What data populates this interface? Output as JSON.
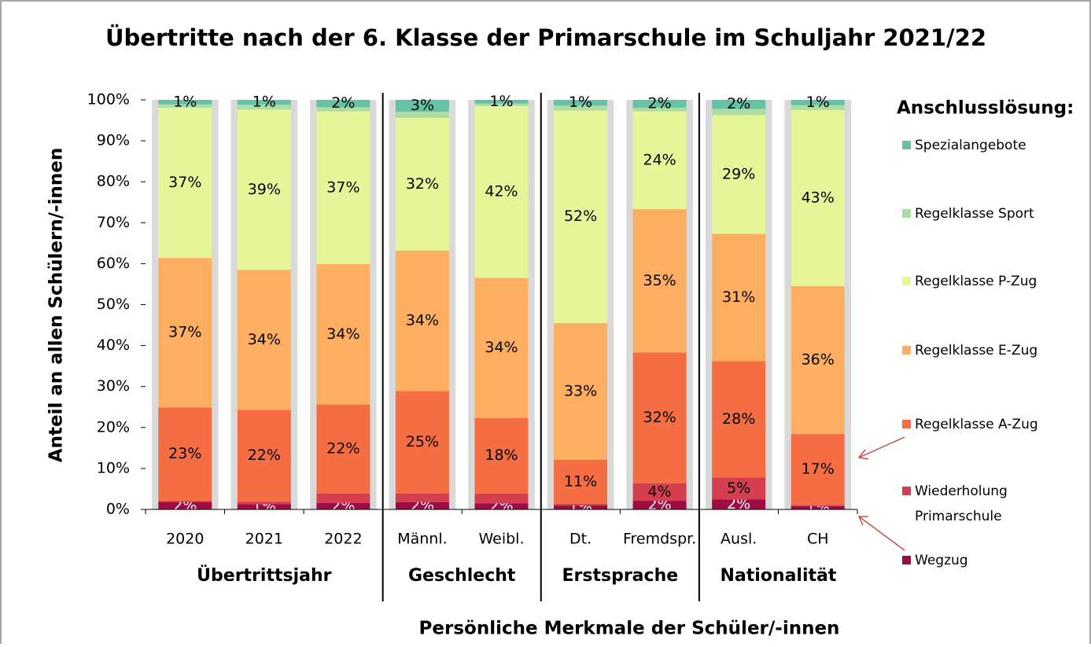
{
  "chart_data": {
    "type": "bar",
    "stacked": true,
    "title": "Übertritte nach der 6. Klasse der Primarschule im Schuljahr 2021/22",
    "ylabel": "Anteil an allen Schülern/-innen",
    "xlabel": "Persönliche Merkmale der Schüler/-innen",
    "categories": [
      "2020",
      "2021",
      "2022",
      "Männl.",
      "Weibl.",
      "Dt.",
      "Fremdspr.",
      "Ausl.",
      "CH"
    ],
    "groups": [
      {
        "name": "Übertrittsjahr",
        "size": 3
      },
      {
        "name": "Geschlecht",
        "size": 2
      },
      {
        "name": "Erstsprache",
        "size": 2
      },
      {
        "name": "Nationalität",
        "size": 2
      }
    ],
    "legend_title": "Anschlusslösung:",
    "legend": "right",
    "ylim": [
      0,
      100
    ],
    "yticks": [
      {
        "value": 0,
        "label": "0%"
      },
      {
        "value": 10,
        "label": "10%"
      },
      {
        "value": 20,
        "label": "20%"
      },
      {
        "value": 30,
        "label": "30%"
      },
      {
        "value": 40,
        "label": "40%"
      },
      {
        "value": 50,
        "label": "50%"
      },
      {
        "value": 60,
        "label": "60%"
      },
      {
        "value": 70,
        "label": "70%"
      },
      {
        "value": 80,
        "label": "80%"
      },
      {
        "value": 90,
        "label": "90%"
      },
      {
        "value": 100,
        "label": "100%"
      }
    ],
    "series": [
      {
        "name": "Wegzug",
        "color": "#9e0b45",
        "values": [
          1.8,
          1.3,
          1.6,
          1.8,
          1.5,
          1.0,
          2.1,
          2.4,
          0.8
        ],
        "value_labels": [
          "2%",
          "1%",
          "2%",
          "2%",
          "2%",
          "1%",
          "2%",
          "2%",
          "1%"
        ]
      },
      {
        "name": "Wiederholung Primarschule",
        "color": "#d53e4f",
        "values": [
          0.3,
          0.6,
          2.3,
          2.1,
          2.4,
          0.4,
          4.3,
          5.4,
          0.3
        ],
        "value_labels": [
          null,
          null,
          null,
          null,
          null,
          null,
          "4%",
          "5%",
          null
        ]
      },
      {
        "name": "Regelklasse A-Zug",
        "color": "#f46d43",
        "values": [
          22.8,
          22.4,
          21.7,
          25.0,
          18.4,
          10.7,
          31.9,
          28.4,
          17.3
        ],
        "value_labels": [
          "23%",
          "22%",
          "22%",
          "25%",
          "18%",
          "11%",
          "32%",
          "28%",
          "17%"
        ]
      },
      {
        "name": "Regelklasse E-Zug",
        "color": "#fdae61",
        "values": [
          36.5,
          34.2,
          34.3,
          34.3,
          34.2,
          33.4,
          35.0,
          31.1,
          36.1
        ],
        "value_labels": [
          "37%",
          "34%",
          "34%",
          "34%",
          "34%",
          "33%",
          "35%",
          "31%",
          "36%"
        ]
      },
      {
        "name": "Regelklasse P-Zug",
        "color": "#e6f598",
        "values": [
          36.7,
          39.1,
          37.3,
          32.4,
          42.0,
          51.9,
          23.9,
          29.0,
          43.0
        ],
        "value_labels": [
          "37%",
          "39%",
          "37%",
          "32%",
          "42%",
          "52%",
          "24%",
          "29%",
          "43%"
        ]
      },
      {
        "name": "Regelklasse Sport",
        "color": "#abdda4",
        "values": [
          0.8,
          1.2,
          1.0,
          1.5,
          0.6,
          1.2,
          0.9,
          1.5,
          1.2
        ],
        "value_labels": [
          null,
          null,
          null,
          null,
          null,
          null,
          null,
          null,
          null
        ]
      },
      {
        "name": "Spezialangebote",
        "color": "#66c2a5",
        "values": [
          1.1,
          1.2,
          1.8,
          2.9,
          0.9,
          1.4,
          1.9,
          2.2,
          1.3
        ],
        "value_labels": [
          "1%",
          "1%",
          "2%",
          "3%",
          "1%",
          "1%",
          "2%",
          "2%",
          "1%"
        ]
      }
    ]
  }
}
